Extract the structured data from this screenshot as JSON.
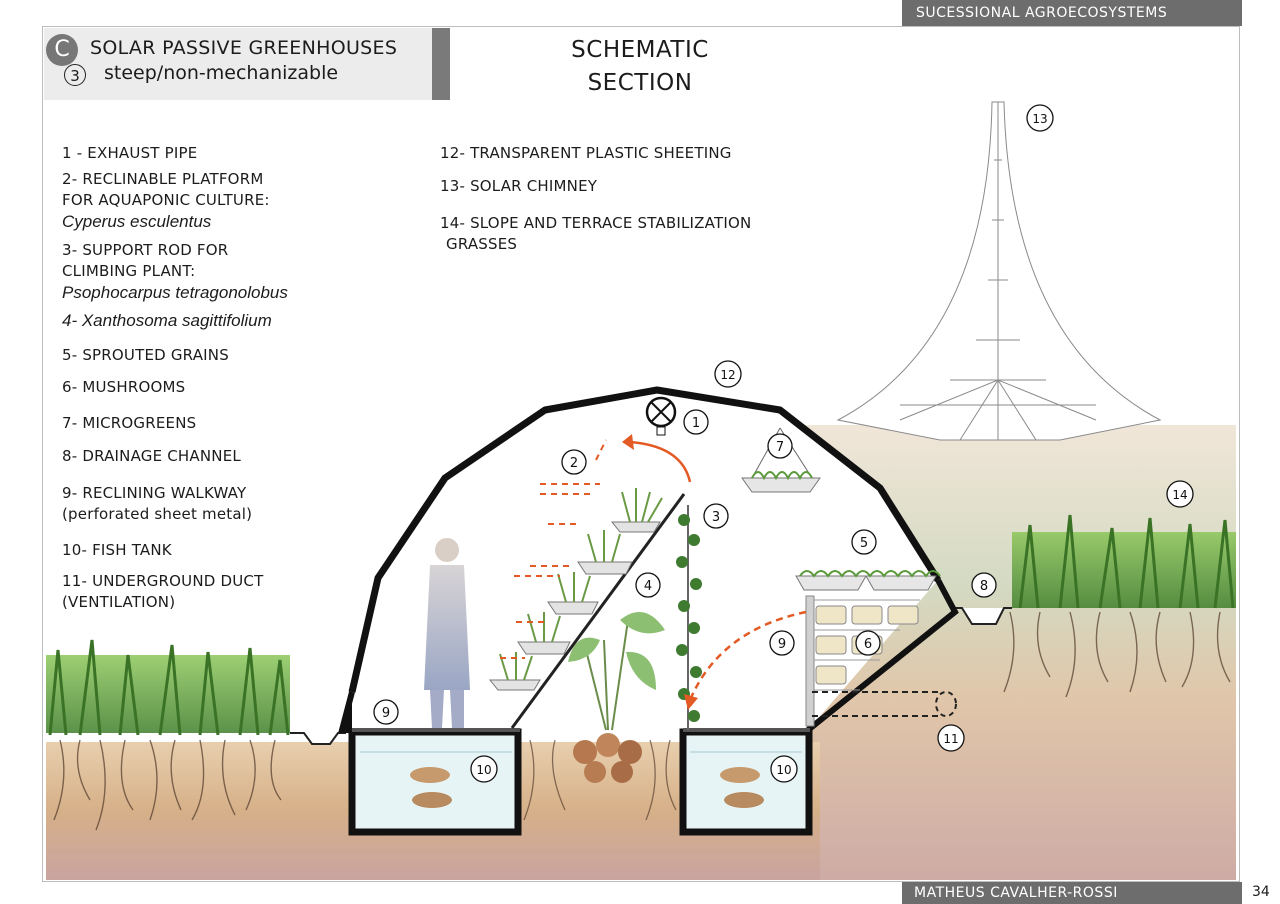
{
  "header": {
    "project": "SUCESSIONAL AGROECOSYSTEMS",
    "badge_letter": "C",
    "title": "SOLAR PASSIVE GREENHOUSES",
    "badge_number": "3",
    "subtitle": "steep/non-mechanizable",
    "section_line1": "SCHEMATIC",
    "section_line2": "SECTION"
  },
  "legend": {
    "l1": "1 - EXHAUST PIPE",
    "l2a": "2- RECLINABLE PLATFORM",
    "l2b": "FOR AQUAPONIC CULTURE:",
    "l2c": "Cyperus esculentus",
    "l3a": "3- SUPPORT ROD FOR",
    "l3b": "CLIMBING PLANT:",
    "l3c": "Psophocarpus tetragonolobus",
    "l4": "4- Xanthosoma sagittifolium",
    "l5": "5- SPROUTED GRAINS",
    "l6": "6- MUSHROOMS",
    "l7": "7- MICROGREENS",
    "l8": "8- DRAINAGE CHANNEL",
    "l9a": "9- RECLINING WALKWAY",
    "l9b": "(perforated sheet metal)",
    "l10": "10- FISH TANK",
    "l11a": "11- UNDERGROUND DUCT",
    "l11b": "(VENTILATION)",
    "l12": "12- TRANSPARENT PLASTIC SHEETING",
    "l13": "13- SOLAR CHIMNEY",
    "l14a": "14- SLOPE AND TERRACE STABILIZATION",
    "l14b": "GRASSES"
  },
  "callouts": {
    "c1": "1",
    "c2": "2",
    "c3": "3",
    "c4": "4",
    "c5": "5",
    "c6": "6",
    "c7": "7",
    "c8": "8",
    "c9a": "9",
    "c9b": "9",
    "c10a": "10",
    "c10b": "10",
    "c11": "11",
    "c12": "12",
    "c13": "13",
    "c14": "14"
  },
  "footer": {
    "author": "MATHEUS CAVALHER-ROSSI",
    "page": "34"
  },
  "colors": {
    "soil": "#d8b48e",
    "grass": "#5e9a3a",
    "water": "#dff0f2",
    "arrow": "#d9531e",
    "outline": "#111111"
  }
}
